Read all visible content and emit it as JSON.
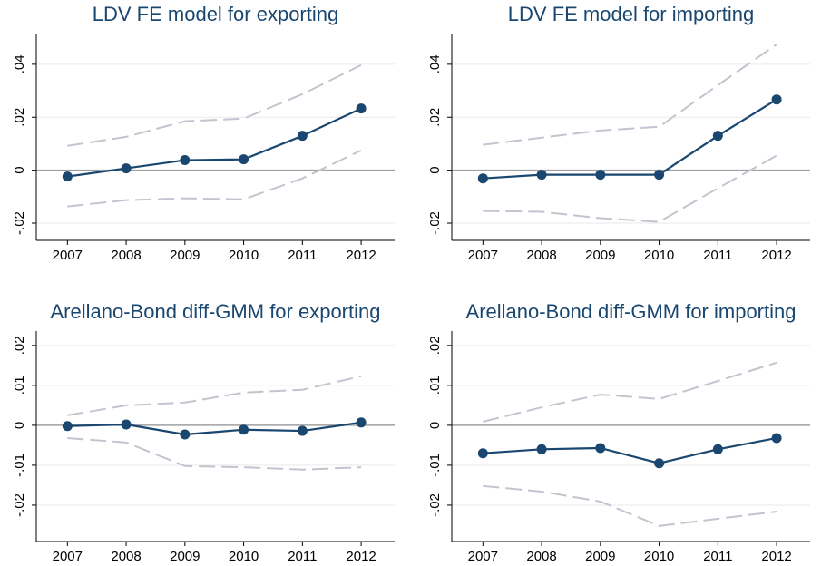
{
  "chart_data": [
    {
      "type": "line",
      "title": "LDV FE model for exporting",
      "x": [
        2007,
        2008,
        2009,
        2010,
        2011,
        2012
      ],
      "xlim": [
        2006.47,
        2012.57
      ],
      "xticks": [
        2007,
        2008,
        2009,
        2010,
        2011,
        2012
      ],
      "ylim": [
        -0.0265,
        0.0516
      ],
      "yticks": [
        {
          "value": -0.02,
          "label": "-.02"
        },
        0,
        {
          "value": 0.02,
          "label": ".02"
        },
        {
          "value": 0.04,
          "label": ".04"
        }
      ],
      "grid": true,
      "series": [
        {
          "color": "#1a476f",
          "dashed": false,
          "markers": true,
          "values": [
            -0.0024,
            0.0007,
            0.0038,
            0.0041,
            0.013,
            0.0233
          ]
        },
        {
          "color": "#c4c4d0",
          "dashed": true,
          "markers": false,
          "values": [
            0.0092,
            0.0126,
            0.0185,
            0.0195,
            0.0287,
            0.0397
          ]
        },
        {
          "color": "#c4c4d0",
          "dashed": true,
          "markers": false,
          "values": [
            -0.0137,
            -0.0113,
            -0.0106,
            -0.011,
            -0.0031,
            0.0075
          ]
        }
      ]
    },
    {
      "type": "line",
      "title": "LDV FE model for importing",
      "x": [
        2007,
        2008,
        2009,
        2010,
        2011,
        2012
      ],
      "xlim": [
        2006.47,
        2012.57
      ],
      "xticks": [
        2007,
        2008,
        2009,
        2010,
        2011,
        2012
      ],
      "ylim": [
        -0.0265,
        0.0516
      ],
      "yticks": [
        {
          "value": -0.02,
          "label": "-.02"
        },
        0,
        {
          "value": 0.02,
          "label": ".02"
        },
        {
          "value": 0.04,
          "label": ".04"
        }
      ],
      "grid": true,
      "series": [
        {
          "color": "#1a476f",
          "dashed": false,
          "markers": true,
          "values": [
            -0.0031,
            -0.0017,
            -0.0017,
            -0.0017,
            0.013,
            0.0267
          ]
        },
        {
          "color": "#c4c4d0",
          "dashed": true,
          "markers": false,
          "values": [
            0.0096,
            0.0123,
            0.015,
            0.0164,
            0.0321,
            0.0475
          ]
        },
        {
          "color": "#c4c4d0",
          "dashed": true,
          "markers": false,
          "values": [
            -0.0154,
            -0.0157,
            -0.0181,
            -0.0195,
            -0.0068,
            0.0055
          ]
        }
      ]
    },
    {
      "type": "line",
      "title": "Arellano-Bond diff-GMM for exporting",
      "x": [
        2007,
        2008,
        2009,
        2010,
        2011,
        2012
      ],
      "xlim": [
        2006.47,
        2012.57
      ],
      "xticks": [
        2007,
        2008,
        2009,
        2010,
        2011,
        2012
      ],
      "ylim": [
        -0.0291,
        0.0236
      ],
      "yticks": [
        {
          "value": -0.02,
          "label": "-.02"
        },
        {
          "value": -0.01,
          "label": "-.01"
        },
        0,
        {
          "value": 0.01,
          "label": ".01"
        },
        {
          "value": 0.02,
          "label": ".02"
        }
      ],
      "grid": true,
      "series": [
        {
          "color": "#1a476f",
          "dashed": false,
          "markers": true,
          "values": [
            -0.0002,
            0.0002,
            -0.0023,
            -0.0011,
            -0.0014,
            0.0007
          ]
        },
        {
          "color": "#c4c4d0",
          "dashed": true,
          "markers": false,
          "values": [
            0.0025,
            0.005,
            0.0057,
            0.0082,
            0.0089,
            0.0123
          ]
        },
        {
          "color": "#c4c4d0",
          "dashed": true,
          "markers": false,
          "values": [
            -0.0032,
            -0.0043,
            -0.0102,
            -0.0105,
            -0.0111,
            -0.0105
          ]
        }
      ]
    },
    {
      "type": "line",
      "title": "Arellano-Bond diff-GMM for importing",
      "x": [
        2007,
        2008,
        2009,
        2010,
        2011,
        2012
      ],
      "xlim": [
        2006.47,
        2012.57
      ],
      "xticks": [
        2007,
        2008,
        2009,
        2010,
        2011,
        2012
      ],
      "ylim": [
        -0.0291,
        0.0236
      ],
      "yticks": [
        {
          "value": -0.02,
          "label": "-.02"
        },
        {
          "value": -0.01,
          "label": "-.01"
        },
        0,
        {
          "value": 0.01,
          "label": ".01"
        },
        {
          "value": 0.02,
          "label": ".02"
        }
      ],
      "grid": true,
      "series": [
        {
          "color": "#1a476f",
          "dashed": false,
          "markers": true,
          "values": [
            -0.007,
            -0.006,
            -0.0057,
            -0.0095,
            -0.006,
            -0.0032
          ]
        },
        {
          "color": "#c4c4d0",
          "dashed": true,
          "markers": false,
          "values": [
            0.0009,
            0.0045,
            0.0077,
            0.0066,
            0.0111,
            0.0157
          ]
        },
        {
          "color": "#c4c4d0",
          "dashed": true,
          "markers": false,
          "values": [
            -0.0152,
            -0.0166,
            -0.0191,
            -0.0252,
            -0.0234,
            -0.0216
          ]
        }
      ]
    }
  ]
}
